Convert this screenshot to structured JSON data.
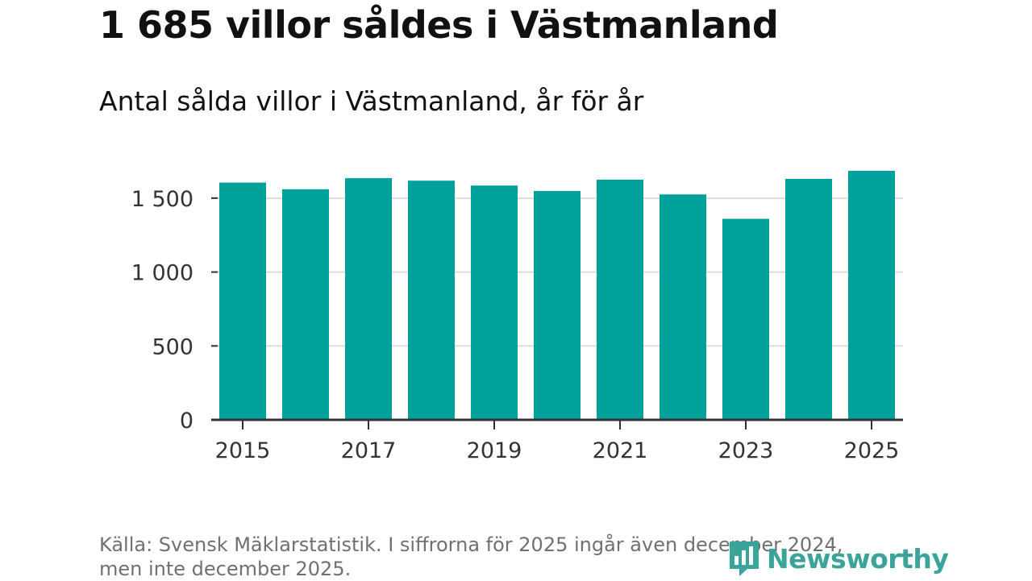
{
  "header": {
    "title": "1 685 villor såldes i Västmanland",
    "subtitle": "Antal sålda villor i Västmanland, år för år"
  },
  "chart_data": {
    "type": "bar",
    "title": "1 685 villor såldes i Västmanland",
    "subtitle": "Antal sålda villor i Västmanland, år för år",
    "categories": [
      "2015",
      "2016",
      "2017",
      "2018",
      "2019",
      "2020",
      "2021",
      "2022",
      "2023",
      "2024",
      "2025"
    ],
    "values": [
      1605,
      1560,
      1635,
      1618,
      1585,
      1548,
      1625,
      1525,
      1360,
      1630,
      1685
    ],
    "x_tick_labels": [
      "2015",
      "2017",
      "2019",
      "2021",
      "2023",
      "2025"
    ],
    "y_ticks": [
      0,
      500,
      1000,
      1500
    ],
    "y_tick_labels": [
      "0",
      "500",
      "1 000",
      "1 500"
    ],
    "ylim": [
      0,
      1750
    ],
    "xlabel": "",
    "ylabel": "",
    "grid": true,
    "colors": {
      "bar": "#00a19a",
      "grid": "#dddddd",
      "axis": "#333333",
      "tick_text": "#333333"
    }
  },
  "footer": {
    "source_line1": "Källa: Svensk Mäklarstatistik. I siffrorna för 2025 ingår även december 2024,",
    "source_line2": "men inte december 2025.",
    "brand": "Newsworthy",
    "brand_icon": "newsworthy-logo-icon",
    "brand_color": "#3aa39a"
  }
}
